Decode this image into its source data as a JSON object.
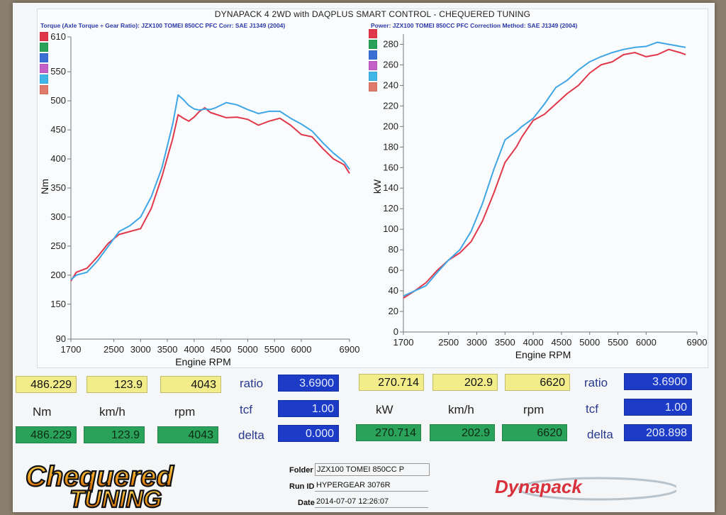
{
  "title": "DYNAPACK 4 2WD with DAQPLUS SMART CONTROL - CHEQUERED TUNING",
  "left_subtitle": "Torque (Axle Torque ÷ Gear Ratio): JZX100 TOMEI 850CC PFC     Corr: SAE J1349 (2004)",
  "right_subtitle": "Power: JZX100 TOMEI 850CC PFC     Correction Method: SAE J1349 (2004)",
  "colors": {
    "red": "#e0384a",
    "blue": "#3fa6e6",
    "green": "#2aa25a",
    "yellow": "#f2ec8a",
    "navy": "#1c3bc7",
    "swatches": [
      "#e0384a",
      "#2aa25a",
      "#3a6fd6",
      "#c45fc8",
      "#3fb6e8",
      "#e07a6a"
    ]
  },
  "chart_data": [
    {
      "type": "line",
      "ylabel": "Nm",
      "xlabel": "Engine RPM",
      "x_ticks": [
        1700,
        2500,
        3000,
        3500,
        4000,
        4500,
        5000,
        5500,
        6000,
        6900
      ],
      "y_ticks": [
        90,
        150,
        200,
        250,
        300,
        350,
        400,
        450,
        500,
        550,
        610
      ],
      "xlim": [
        1700,
        6900
      ],
      "ylim": [
        90,
        610
      ],
      "series": [
        {
          "color": "red",
          "x": [
            1700,
            1800,
            2000,
            2200,
            2400,
            2600,
            2800,
            3000,
            3200,
            3400,
            3600,
            3700,
            3800,
            3900,
            4000,
            4100,
            4200,
            4300,
            4400,
            4600,
            4800,
            5000,
            5200,
            5400,
            5600,
            5800,
            6000,
            6200,
            6400,
            6600,
            6800,
            6900
          ],
          "y": [
            190,
            205,
            212,
            232,
            255,
            270,
            275,
            280,
            315,
            370,
            435,
            476,
            470,
            465,
            472,
            482,
            488,
            480,
            477,
            471,
            472,
            468,
            458,
            465,
            470,
            458,
            442,
            438,
            418,
            400,
            390,
            375
          ]
        },
        {
          "color": "blue",
          "x": [
            1700,
            1800,
            2000,
            2200,
            2400,
            2600,
            2800,
            3000,
            3200,
            3400,
            3600,
            3700,
            3800,
            3900,
            4000,
            4100,
            4200,
            4300,
            4400,
            4600,
            4800,
            5000,
            5200,
            5400,
            5600,
            5800,
            6000,
            6200,
            6400,
            6600,
            6800,
            6900
          ],
          "y": [
            192,
            200,
            205,
            225,
            250,
            275,
            285,
            300,
            335,
            385,
            460,
            510,
            502,
            492,
            486,
            484,
            486,
            485,
            488,
            497,
            493,
            485,
            478,
            482,
            482,
            470,
            460,
            448,
            428,
            410,
            395,
            382
          ]
        }
      ]
    },
    {
      "type": "line",
      "ylabel": "kW",
      "xlabel": "Engine RPM",
      "x_ticks": [
        1700,
        2500,
        3000,
        3500,
        4000,
        4500,
        5000,
        5500,
        6000,
        6900
      ],
      "y_ticks": [
        0,
        20,
        40,
        60,
        80,
        100,
        120,
        140,
        160,
        180,
        200,
        220,
        240,
        260,
        280
      ],
      "xlim": [
        1700,
        6900
      ],
      "ylim": [
        0,
        290
      ],
      "series": [
        {
          "color": "red",
          "x": [
            1700,
            1900,
            2100,
            2300,
            2500,
            2700,
            2900,
            3100,
            3300,
            3500,
            3700,
            3800,
            4000,
            4200,
            4400,
            4600,
            4800,
            5000,
            5200,
            5400,
            5600,
            5800,
            6000,
            6200,
            6400,
            6600,
            6700
          ],
          "y": [
            33,
            40,
            48,
            60,
            70,
            77,
            88,
            108,
            135,
            165,
            180,
            190,
            206,
            212,
            222,
            232,
            240,
            252,
            260,
            263,
            270,
            272,
            268,
            270,
            275,
            272,
            270
          ]
        },
        {
          "color": "blue",
          "x": [
            1700,
            1900,
            2100,
            2300,
            2500,
            2700,
            2900,
            3100,
            3300,
            3500,
            3700,
            3800,
            4000,
            4200,
            4400,
            4600,
            4800,
            5000,
            5200,
            5400,
            5600,
            5800,
            6000,
            6200,
            6400,
            6600,
            6700
          ],
          "y": [
            35,
            40,
            45,
            58,
            70,
            80,
            98,
            125,
            158,
            187,
            195,
            200,
            208,
            222,
            238,
            245,
            255,
            263,
            268,
            272,
            275,
            277,
            278,
            282,
            280,
            278,
            277
          ]
        }
      ]
    }
  ],
  "readouts": {
    "left": {
      "torque": "486.229",
      "speed": "123.9",
      "rpm": "4043",
      "unit_torque": "Nm",
      "unit_speed": "km/h",
      "unit_rpm": "rpm",
      "ratio_label": "ratio",
      "tcf_label": "tcf",
      "delta_label": "delta",
      "ratio": "3.6900",
      "tcf": "1.00",
      "delta": "0.000"
    },
    "right": {
      "power": "270.714",
      "speed": "202.9",
      "rpm": "6620",
      "unit_power": "kW",
      "unit_speed": "km/h",
      "unit_rpm": "rpm",
      "ratio_label": "ratio",
      "tcf_label": "tcf",
      "delta_label": "delta",
      "ratio": "3.6900",
      "tcf": "1.00",
      "delta": "208.898"
    }
  },
  "footer": {
    "logo_line1": "Chequered",
    "logo_line2": "TUNING",
    "folder_label": "Folder",
    "folder_value": "JZX100 TOMEI 850CC P",
    "runid_label": "Run ID",
    "runid_value": "HYPERGEAR 3076R",
    "date_label": "Date",
    "date_value": "2014-07-07 12:26:07",
    "brand": "Dynapack"
  }
}
